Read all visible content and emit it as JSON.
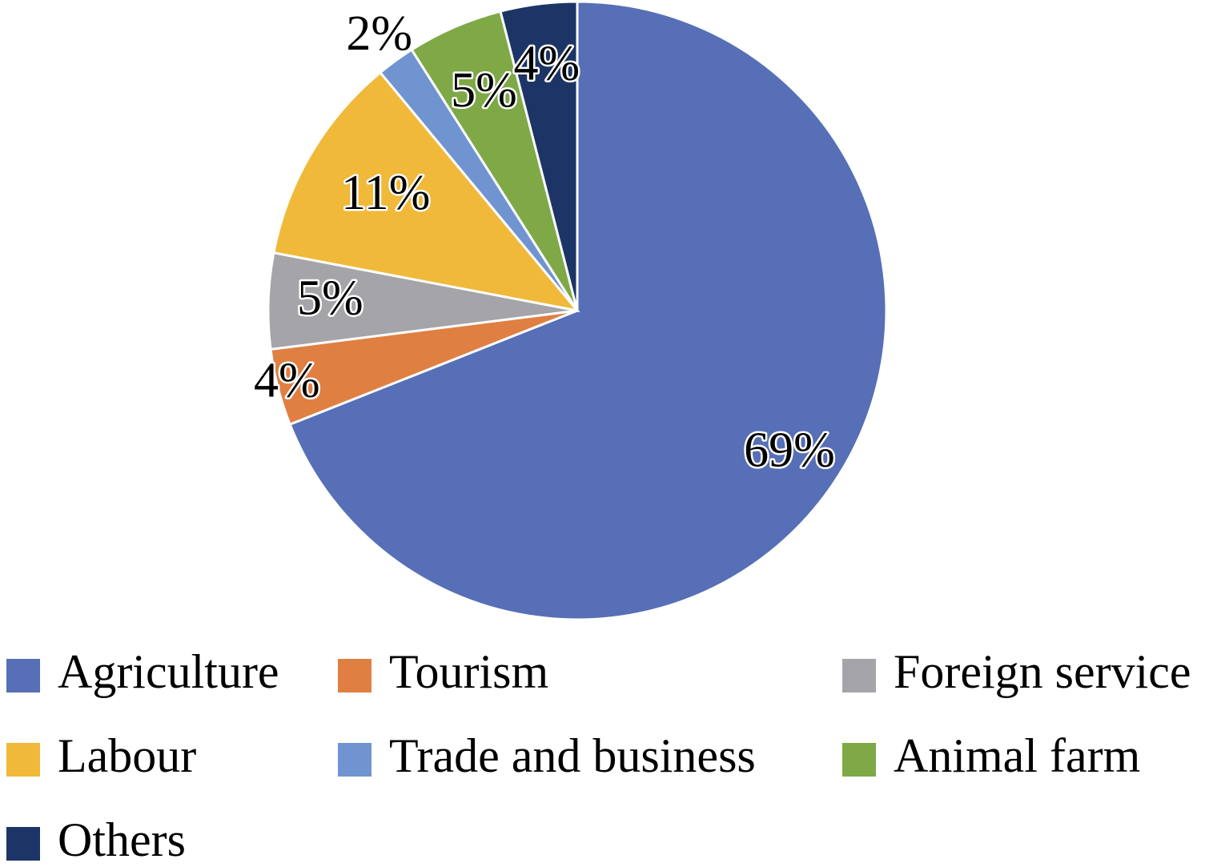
{
  "chart_data": {
    "type": "pie",
    "categories": [
      "Agriculture",
      "Tourism",
      "Foreign service",
      "Labour",
      "Trade and business",
      "Animal farm",
      "Others"
    ],
    "values": [
      69,
      4,
      5,
      11,
      2,
      5,
      4
    ],
    "value_labels": [
      "69%",
      "4%",
      "5%",
      "11%",
      "2%",
      "5%",
      "4%"
    ],
    "colors": [
      "#566fb6",
      "#e07f42",
      "#a5a4a8",
      "#f0b93a",
      "#7094d0",
      "#7ea946",
      "#1d3566"
    ],
    "legend": "bottom"
  }
}
